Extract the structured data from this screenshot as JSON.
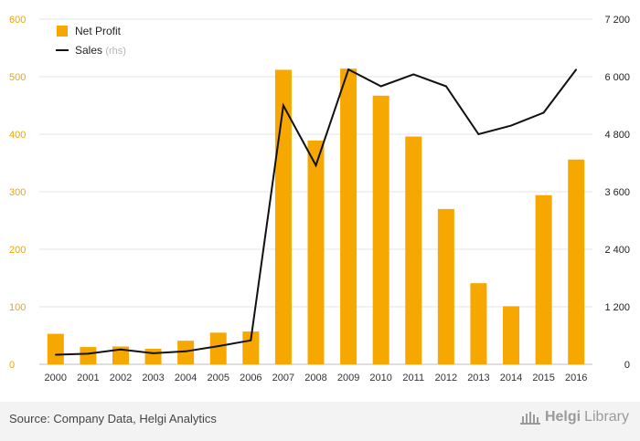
{
  "chart_data": {
    "type": "bar+line",
    "categories": [
      "2000",
      "2001",
      "2002",
      "2003",
      "2004",
      "2005",
      "2006",
      "2007",
      "2008",
      "2009",
      "2010",
      "2011",
      "2012",
      "2013",
      "2014",
      "2015",
      "2016"
    ],
    "series": [
      {
        "name": "Net Profit",
        "type": "bar",
        "axis": "left",
        "values": [
          53,
          30,
          31,
          27,
          41,
          55,
          57,
          512,
          389,
          514,
          467,
          396,
          270,
          141,
          101,
          294,
          356
        ]
      },
      {
        "name": "Sales",
        "axis_note": "(rhs)",
        "type": "line",
        "axis": "right",
        "values": [
          200,
          220,
          310,
          230,
          270,
          380,
          500,
          5400,
          4150,
          6150,
          5800,
          6050,
          5800,
          4800,
          4980,
          5250,
          6150
        ]
      }
    ],
    "y_left": {
      "min": 0,
      "max": 600,
      "ticks": [
        "0",
        "100",
        "200",
        "300",
        "400",
        "500",
        "600"
      ]
    },
    "y_right": {
      "min": 0,
      "max": 7200,
      "ticks": [
        "0",
        "1 200",
        "2 400",
        "3 600",
        "4 800",
        "6 000",
        "7 200"
      ]
    },
    "legend": {
      "position": "top-left"
    },
    "grid": true
  },
  "colors": {
    "bar": "#f7a800",
    "line": "#111111",
    "grid": "#e4e4e4",
    "leftAxisText": "#f0a500",
    "rightAxisText": "#222222"
  },
  "footer": {
    "source": "Source: Company Data, Helgi Analytics",
    "brand_name": "Helgi",
    "brand_suffix": "Library"
  }
}
